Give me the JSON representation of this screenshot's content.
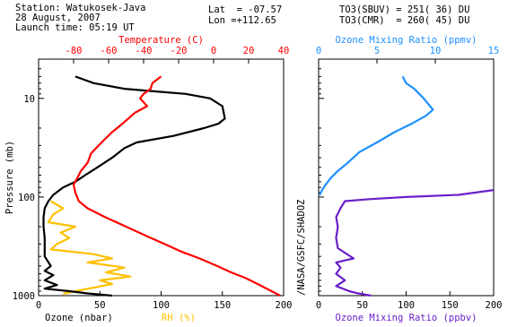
{
  "header": {
    "station": "Station: Watukosek-Java",
    "date": "28 August, 2007",
    "launch": "Launch time: 05:19 UT",
    "lat": "Lat  = -07.57",
    "lon": "Lon =+112.65",
    "to3_sbuv": "TO3(SBUV) = 251( 36) DU",
    "to3_cmr": "TO3(CMR)  = 260( 45) DU",
    "credit": "/NASA/GSFC/SHADOZ"
  },
  "colors": {
    "ozone": "#000000",
    "temperature": "#ff0000",
    "rh": "#ffc000",
    "ozone_mr_ppmv": "#1e90ff",
    "ozone_mr_ppbv": "#6a1fc8"
  },
  "chart_data": [
    {
      "type": "line",
      "panel": "left",
      "ylabel": "Pressure (mb)",
      "ylim": [
        1000,
        4
      ],
      "yscale": "log",
      "yticks": [
        "10",
        "100",
        "1000"
      ],
      "xlabel_bottom": "Ozone (nbar)",
      "xlabel_bottom_rh": "RH (%)",
      "xlim_bottom": [
        0,
        200
      ],
      "xticks_bottom": [
        "0",
        "50",
        "100",
        "150",
        "200"
      ],
      "xlabel_top": "Temperature (C)",
      "xlim_top": [
        -100,
        40
      ],
      "xticks_top": [
        "-80",
        "-60",
        "-40",
        "-20",
        "0",
        "20",
        "40"
      ],
      "series": [
        {
          "name": "Ozone (nbar)",
          "axis": "bottom",
          "points": [
            [
              30,
              6
            ],
            [
              45,
              7
            ],
            [
              70,
              8
            ],
            [
              95,
              8.5
            ],
            [
              120,
              9
            ],
            [
              140,
              10
            ],
            [
              150,
              12
            ],
            [
              152,
              16
            ],
            [
              147,
              18
            ],
            [
              135,
              20
            ],
            [
              110,
              24
            ],
            [
              80,
              28
            ],
            [
              70,
              32
            ],
            [
              60,
              40
            ],
            [
              48,
              50
            ],
            [
              38,
              60
            ],
            [
              30,
              70
            ],
            [
              20,
              80
            ],
            [
              12,
              95
            ],
            [
              8,
              110
            ],
            [
              5,
              130
            ],
            [
              4,
              160
            ],
            [
              4,
              200
            ],
            [
              5,
              260
            ],
            [
              5,
              320
            ],
            [
              5,
              400
            ],
            [
              10,
              500
            ],
            [
              5,
              560
            ],
            [
              12,
              620
            ],
            [
              5,
              700
            ],
            [
              15,
              780
            ],
            [
              5,
              850
            ],
            [
              25,
              900
            ],
            [
              40,
              950
            ],
            [
              60,
              1000
            ]
          ]
        },
        {
          "name": "Temperature (C)",
          "axis": "top",
          "points": [
            [
              -30,
              6
            ],
            [
              -35,
              7
            ],
            [
              -36,
              8
            ],
            [
              -40,
              9
            ],
            [
              -42,
              10
            ],
            [
              -38,
              12
            ],
            [
              -45,
              14
            ],
            [
              -52,
              18
            ],
            [
              -58,
              22
            ],
            [
              -64,
              28
            ],
            [
              -70,
              36
            ],
            [
              -72,
              45
            ],
            [
              -76,
              55
            ],
            [
              -78,
              65
            ],
            [
              -80,
              75
            ],
            [
              -79,
              90
            ],
            [
              -77,
              110
            ],
            [
              -72,
              130
            ],
            [
              -62,
              160
            ],
            [
              -50,
              200
            ],
            [
              -38,
              250
            ],
            [
              -28,
              300
            ],
            [
              -18,
              360
            ],
            [
              -8,
              420
            ],
            [
              2,
              500
            ],
            [
              10,
              580
            ],
            [
              18,
              660
            ],
            [
              25,
              760
            ],
            [
              32,
              880
            ],
            [
              38,
              1000
            ]
          ]
        },
        {
          "name": "RH (%)",
          "axis": "bottom",
          "points": [
            [
              10,
              110
            ],
            [
              20,
              130
            ],
            [
              12,
              150
            ],
            [
              8,
              180
            ],
            [
              30,
              200
            ],
            [
              18,
              230
            ],
            [
              25,
              260
            ],
            [
              15,
              300
            ],
            [
              10,
              340
            ],
            [
              45,
              380
            ],
            [
              60,
              420
            ],
            [
              40,
              460
            ],
            [
              70,
              520
            ],
            [
              55,
              580
            ],
            [
              75,
              640
            ],
            [
              50,
              700
            ],
            [
              60,
              760
            ],
            [
              45,
              830
            ],
            [
              30,
              900
            ],
            [
              20,
              960
            ]
          ]
        }
      ]
    },
    {
      "type": "line",
      "panel": "right",
      "xlabel_top": "Ozone Mixing Ratio (ppmv)",
      "xlim_top": [
        0,
        15
      ],
      "xticks_top": [
        "0",
        "5",
        "10",
        "15"
      ],
      "xlabel_bottom": "Ozone Mixing Ratio (ppbv)",
      "xlim_bottom": [
        0,
        200
      ],
      "xticks_bottom": [
        "0",
        "50",
        "100",
        "150",
        "200"
      ],
      "series": [
        {
          "name": "Ozone Mixing Ratio (ppmv)",
          "axis": "top",
          "points": [
            [
              7.2,
              6
            ],
            [
              7.5,
              7
            ],
            [
              8.2,
              8
            ],
            [
              9,
              10
            ],
            [
              9.8,
              13
            ],
            [
              9.2,
              15
            ],
            [
              8,
              18
            ],
            [
              6.5,
              22
            ],
            [
              5,
              28
            ],
            [
              3.5,
              35
            ],
            [
              2.5,
              45
            ],
            [
              1.6,
              55
            ],
            [
              1,
              65
            ],
            [
              0.6,
              75
            ],
            [
              0.3,
              85
            ],
            [
              0.1,
              95
            ]
          ]
        },
        {
          "name": "Ozone Mixing Ratio (ppbv)",
          "axis": "bottom",
          "points": [
            [
              200,
              85
            ],
            [
              160,
              95
            ],
            [
              100,
              100
            ],
            [
              60,
              105
            ],
            [
              30,
              110
            ],
            [
              25,
              130
            ],
            [
              20,
              160
            ],
            [
              22,
              200
            ],
            [
              20,
              260
            ],
            [
              22,
              330
            ],
            [
              40,
              420
            ],
            [
              20,
              460
            ],
            [
              25,
              520
            ],
            [
              20,
              600
            ],
            [
              30,
              700
            ],
            [
              20,
              800
            ],
            [
              35,
              900
            ],
            [
              45,
              950
            ],
            [
              60,
              1000
            ]
          ]
        }
      ]
    }
  ]
}
